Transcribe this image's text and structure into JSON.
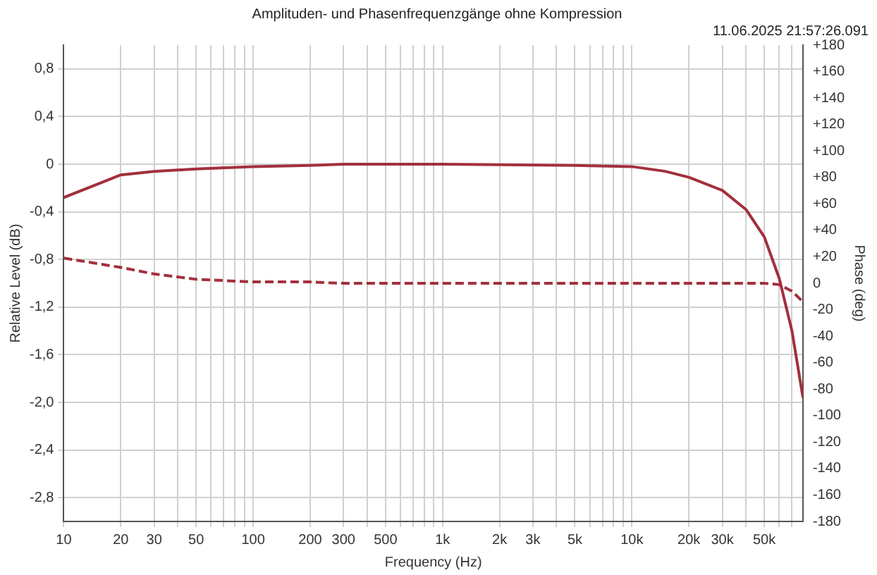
{
  "chart_data": {
    "type": "line",
    "title": "Amplituden- und Phasenfrequenzgänge ohne Kompression",
    "subtitle": "11.06.2025 21:57:26.091",
    "xlabel": "Frequency (Hz)",
    "ylabel": "Relative Level (dB)",
    "y2label": "Phase (deg)",
    "log": "x",
    "grid": true,
    "legend": false,
    "marker": "none",
    "xlim": [
      10,
      80000
    ],
    "xticks": [
      10,
      20,
      30,
      {
        "value": 40,
        "label": null
      },
      50,
      {
        "value": 60,
        "label": null
      },
      {
        "value": 70,
        "label": null
      },
      {
        "value": 80,
        "label": null
      },
      {
        "value": 90,
        "label": null
      },
      100,
      200,
      300,
      {
        "value": 400,
        "label": null
      },
      500,
      {
        "value": 600,
        "label": null
      },
      {
        "value": 700,
        "label": null
      },
      {
        "value": 800,
        "label": null
      },
      {
        "value": 900,
        "label": null
      },
      {
        "value": 1000,
        "label": "1k"
      },
      {
        "value": 2000,
        "label": "2k"
      },
      {
        "value": 3000,
        "label": "3k"
      },
      {
        "value": 4000,
        "label": null
      },
      {
        "value": 5000,
        "label": "5k"
      },
      {
        "value": 6000,
        "label": null
      },
      {
        "value": 7000,
        "label": null
      },
      {
        "value": 8000,
        "label": null
      },
      {
        "value": 9000,
        "label": null
      },
      {
        "value": 10000,
        "label": "10k"
      },
      {
        "value": 20000,
        "label": "20k"
      },
      {
        "value": 30000,
        "label": "30k"
      },
      {
        "value": 40000,
        "label": null
      },
      {
        "value": 50000,
        "label": "50k"
      },
      {
        "value": 60000,
        "label": null
      },
      {
        "value": 70000,
        "label": null
      }
    ],
    "ylim": [
      -3,
      1
    ],
    "yticks": [
      {
        "value": 0.8,
        "label": "0,8"
      },
      {
        "value": 0.4,
        "label": "0,4"
      },
      0,
      {
        "value": -0.4,
        "label": "-0,4"
      },
      {
        "value": -0.8,
        "label": "-0,8"
      },
      {
        "value": -1.2,
        "label": "-1,2"
      },
      {
        "value": -1.6,
        "label": "-1,6"
      },
      {
        "value": -2,
        "label": "-2,0"
      },
      {
        "value": -2.4,
        "label": "-2,4"
      },
      {
        "value": -2.8,
        "label": "-2,8"
      }
    ],
    "y2lim": [
      -180,
      180
    ],
    "y2ticks": [
      {
        "value": 180,
        "label": "+180"
      },
      {
        "value": 160,
        "label": "+160"
      },
      {
        "value": 140,
        "label": "+140"
      },
      {
        "value": 120,
        "label": "+120"
      },
      {
        "value": 100,
        "label": "+100"
      },
      {
        "value": 80,
        "label": "+80"
      },
      {
        "value": 60,
        "label": "+60"
      },
      {
        "value": 40,
        "label": "+40"
      },
      {
        "value": 20,
        "label": "+20"
      },
      0,
      -20,
      -40,
      -60,
      -80,
      -100,
      -120,
      -140,
      -160,
      -180
    ],
    "x": [
      10,
      20,
      30,
      50,
      100,
      200,
      300,
      1000,
      5000,
      10000,
      15000,
      20000,
      30000,
      40000,
      50000,
      60000,
      70000,
      80000
    ],
    "series": [
      {
        "color": "#a3303c",
        "line_style": "solid",
        "values": [
          -0.28,
          -0.09,
          -0.06,
          -0.04,
          -0.02,
          -0.01,
          0,
          0,
          -0.01,
          -0.02,
          -0.06,
          -0.11,
          -0.22,
          -0.38,
          -0.61,
          -0.96,
          -1.4,
          -1.96
        ]
      },
      {
        "color": "#a3303c",
        "line_style": "dashed",
        "axis": "y2",
        "values": [
          19,
          12,
          7,
          3,
          1,
          1,
          0,
          0,
          0,
          0,
          0,
          0,
          0,
          0,
          0,
          -1,
          -6,
          -14
        ]
      }
    ]
  }
}
